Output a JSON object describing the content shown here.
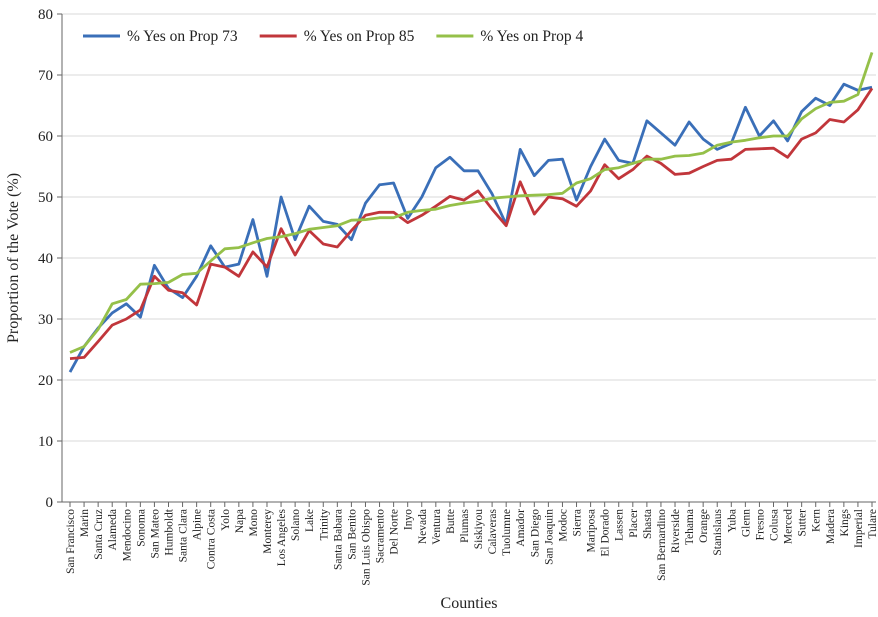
{
  "chart_data": {
    "type": "line",
    "x_label": "Counties",
    "y_label": "Proportion of the Vote (%)",
    "categories": [
      "San Francisco",
      "Marin",
      "Santa Cruz",
      "Alameda",
      "Mendocino",
      "Sonoma",
      "San Mateo",
      "Humboldt",
      "Santa Clara",
      "Alpine",
      "Contra Costa",
      "Yolo",
      "Napa",
      "Mono",
      "Monterey",
      "Los Angeles",
      "Solano",
      "Lake",
      "Trinity",
      "Santa Babara",
      "San Benito",
      "San Luis Obispo",
      "Sacramento",
      "Del Norte",
      "Inyo",
      "Nevada",
      "Ventura",
      "Butte",
      "Plumas",
      "Siskiyou",
      "Calaveras",
      "Tuolumne",
      "Amador",
      "San Diego",
      "San Joaquin",
      "Modoc",
      "Sierra",
      "Mariposa",
      "El Dorado",
      "Lassen",
      "Placer",
      "Shasta",
      "San Bernardino",
      "Riverside",
      "Tehama",
      "Orange",
      "Stanislaus",
      "Yuba",
      "Glenn",
      "Fresno",
      "Colusa",
      "Merced",
      "Sutter",
      "Kern",
      "Madera",
      "Kings",
      "Imperial",
      "Tulare"
    ],
    "series": [
      {
        "name": "% Yes on Prop 73",
        "color": "#3a6fb8",
        "values": [
          21.3,
          25.5,
          28.5,
          31,
          32.5,
          30.3,
          38.8,
          35,
          33.5,
          37,
          42,
          38.5,
          39,
          46.3,
          37,
          50,
          43,
          48.5,
          46,
          45.5,
          43,
          49,
          52,
          52.3,
          46.5,
          50,
          54.8,
          56.5,
          54.3,
          54.3,
          50.5,
          45.5,
          57.8,
          53.5,
          56,
          56.2,
          49.5,
          55,
          59.5,
          56,
          55.5,
          62.5,
          60.5,
          58.5,
          62.3,
          59.5,
          57.8,
          58.8,
          64.7,
          60,
          62.5,
          59.2,
          64,
          66.2,
          65,
          68.5,
          67.5,
          68
        ]
      },
      {
        "name": "% Yes on Prop 85",
        "color": "#c1363b",
        "values": [
          23.5,
          23.7,
          26.3,
          29,
          30,
          31.5,
          37,
          34.7,
          34.3,
          32.3,
          39,
          38.5,
          37,
          41,
          38.5,
          44.8,
          40.5,
          44.5,
          42.3,
          41.8,
          44.5,
          47,
          47.5,
          47.5,
          45.8,
          47,
          48.5,
          50.1,
          49.5,
          51,
          48,
          45.3,
          52.5,
          47.2,
          50,
          49.7,
          48.5,
          51,
          55.3,
          53,
          54.5,
          56.7,
          55.5,
          53.7,
          53.9,
          55,
          56,
          56.2,
          57.8,
          57.9,
          58,
          56.5,
          59.5,
          60.5,
          62.7,
          62.3,
          64.3,
          67.8
        ]
      },
      {
        "name": "% Yes on Prop 4",
        "color": "#95c049",
        "values": [
          24.5,
          25.5,
          28.3,
          32.5,
          33.2,
          35.7,
          35.8,
          36,
          37.3,
          37.5,
          39.5,
          41.5,
          41.7,
          42.5,
          43.2,
          43.5,
          44,
          44.7,
          45,
          45.3,
          46.2,
          46.3,
          46.6,
          46.6,
          47.5,
          47.8,
          48,
          48.6,
          49,
          49.3,
          49.8,
          50,
          50.2,
          50.3,
          50.4,
          50.6,
          52.3,
          53,
          54.5,
          54.8,
          55.5,
          56.2,
          56.2,
          56.7,
          56.8,
          57.2,
          58.5,
          59,
          59.3,
          59.7,
          60,
          60,
          62.8,
          64.5,
          65.5,
          65.7,
          66.8,
          73.7
        ]
      }
    ],
    "ylim": [
      0,
      80
    ],
    "yticks": [
      0,
      10,
      20,
      30,
      40,
      50,
      60,
      70,
      80
    ],
    "grid": true,
    "legend": "top-left"
  }
}
